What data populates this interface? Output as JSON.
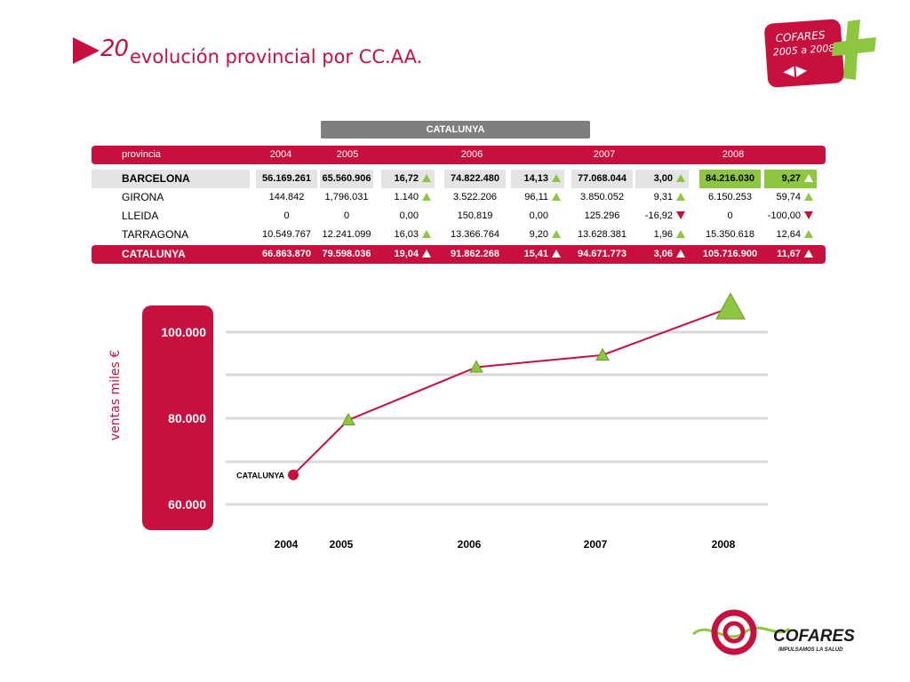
{
  "header": {
    "slide_number": "20",
    "title": "evolución provincial por CC.AA.",
    "badge_line1": "COFARES",
    "badge_line2": "2005 a 2008",
    "badge_arrows": "◀▶"
  },
  "table": {
    "region_label": "CATALUNYA",
    "headers": {
      "provincia": "provincia",
      "y2004": "2004",
      "y2005": "2005",
      "y2006": "2006",
      "y2007": "2007",
      "y2008": "2008"
    },
    "rows": [
      {
        "name": "BARCELONA",
        "v2004": "56.169.261",
        "v2005": "65.560.906",
        "p2005": "16,72",
        "t2005": "up",
        "v2006": "74.822.480",
        "p2006": "14,13",
        "t2006": "up",
        "v2007": "77.068.044",
        "p2007": "3,00",
        "t2007": "up",
        "v2008": "84.216.030",
        "p2008": "9,27",
        "t2008": "up"
      },
      {
        "name": "GIRONA",
        "v2004": "144.842",
        "v2005": "1,796.031",
        "p2005": "1.140",
        "t2005": "up",
        "v2006": "3.522.206",
        "p2006": "96,11",
        "t2006": "up",
        "v2007": "3.850.052",
        "p2007": "9,31",
        "t2007": "up",
        "v2008": "6.150.253",
        "p2008": "59,74",
        "t2008": "up"
      },
      {
        "name": "LLEIDA",
        "v2004": "0",
        "v2005": "0",
        "p2005": "0,00",
        "t2005": "none",
        "v2006": "150.819",
        "p2006": "0,00",
        "t2006": "none",
        "v2007": "125.296",
        "p2007": "-16,92",
        "t2007": "down",
        "v2008": "0",
        "p2008": "-100,00",
        "t2008": "down"
      },
      {
        "name": "TARRAGONA",
        "v2004": "10.549.767",
        "v2005": "12.241.099",
        "p2005": "16,03",
        "t2005": "up",
        "v2006": "13.366.764",
        "p2006": "9,20",
        "t2006": "up",
        "v2007": "13.628.381",
        "p2007": "1,96",
        "t2007": "up",
        "v2008": "15.350.618",
        "p2008": "12,64",
        "t2008": "up"
      },
      {
        "name": "CATALUNYA",
        "v2004": "66.863.870",
        "v2005": "79.598.036",
        "p2005": "19,04",
        "t2005": "up",
        "v2006": "91.862.268",
        "p2006": "15,41",
        "t2006": "up",
        "v2007": "94.671.773",
        "p2007": "3,06",
        "t2007": "up",
        "v2008": "105.716.900",
        "p2008": "11,67",
        "t2008": "up"
      }
    ]
  },
  "chart_data": {
    "type": "line",
    "ylabel": "ventas miles €",
    "x": [
      "2004",
      "2005",
      "2006",
      "2007",
      "2008"
    ],
    "x_numeric": [
      2004,
      2005,
      2006,
      2007,
      2008
    ],
    "yticks": [
      {
        "value": 60000,
        "label": "60.000"
      },
      {
        "value": 80000,
        "label": "80.000"
      },
      {
        "value": 100000,
        "label": "100.000"
      }
    ],
    "ylim": [
      60000,
      104000
    ],
    "grid": true,
    "series": [
      {
        "name": "CATALUNYA",
        "values": [
          66863.87,
          79598.036,
          91862.268,
          94671.773,
          105716.9
        ]
      }
    ],
    "colors": {
      "line": "#c8103e",
      "marker": "#8dc63f",
      "start_marker": "#c8103e",
      "axis_band": "#c8103e",
      "grid": "#d9d9d9"
    }
  },
  "logo": {
    "name": "COFARES",
    "tagline": "IMPULSAMOS LA SALUD"
  }
}
